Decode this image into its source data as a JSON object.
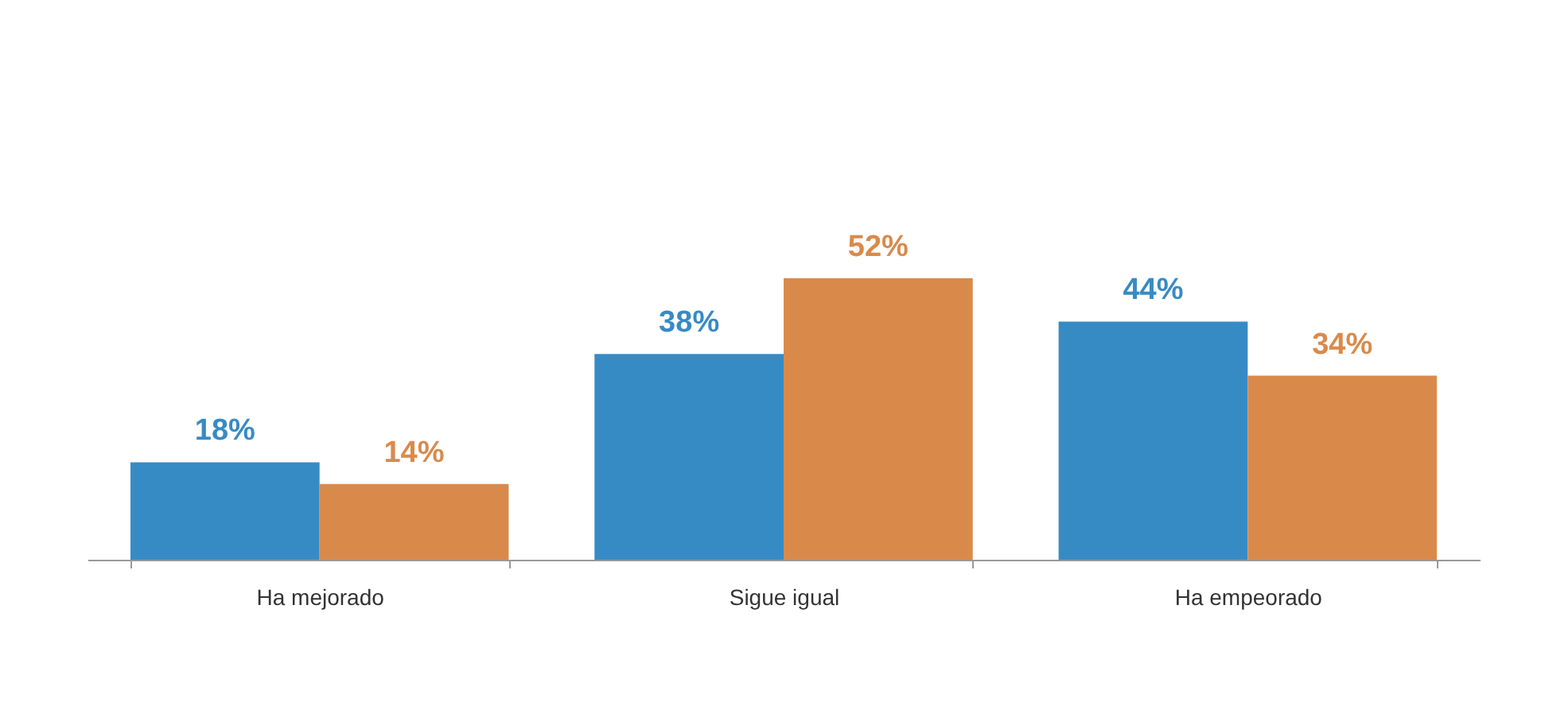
{
  "chart_data": {
    "type": "bar",
    "categories": [
      "Ha mejorado",
      "Sigue igual",
      "Ha empeorado"
    ],
    "series": [
      {
        "color": "#378bc4",
        "values": [
          18,
          38,
          44
        ],
        "value_labels": [
          "18%",
          "38%",
          "44%"
        ]
      },
      {
        "color": "#d98a4b",
        "values": [
          14,
          52,
          34
        ],
        "value_labels": [
          "14%",
          "52%",
          "34%"
        ]
      }
    ],
    "legend": false,
    "grid": false
  }
}
